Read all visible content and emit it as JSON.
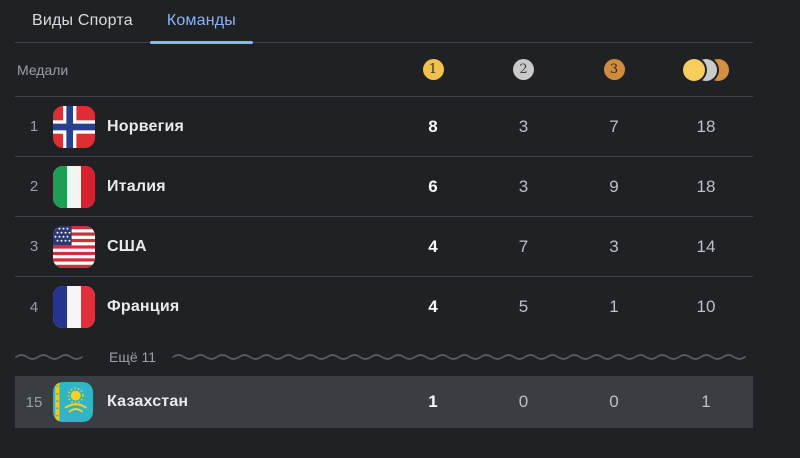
{
  "tabs": {
    "items": [
      {
        "label": "Виды Спорта",
        "active": false
      },
      {
        "label": "Команды",
        "active": true
      }
    ]
  },
  "medals": {
    "caption": "Медали",
    "header": {
      "gold_badge": "1",
      "silver_badge": "2",
      "bronze_badge": "3",
      "total_icon": "gold-silver-bronze-coins"
    },
    "rows": [
      {
        "rank": "1",
        "country": "Норвегия",
        "flag": "norway",
        "gold": "8",
        "silver": "3",
        "bronze": "7",
        "total": "18"
      },
      {
        "rank": "2",
        "country": "Италия",
        "flag": "italy",
        "gold": "6",
        "silver": "3",
        "bronze": "9",
        "total": "18"
      },
      {
        "rank": "3",
        "country": "США",
        "flag": "usa",
        "gold": "4",
        "silver": "7",
        "bronze": "3",
        "total": "14"
      },
      {
        "rank": "4",
        "country": "Франция",
        "flag": "france",
        "gold": "4",
        "silver": "5",
        "bronze": "1",
        "total": "10"
      }
    ],
    "more_label": "Ещё 11",
    "highlighted_row": {
      "rank": "15",
      "country": "Казахстан",
      "flag": "kazakhstan",
      "gold": "1",
      "silver": "0",
      "bronze": "0",
      "total": "1"
    }
  },
  "colors": {
    "background": "#202124",
    "accent_blue": "#8ab4f8",
    "gold": "#f1c04d",
    "silver": "#c9c9c9",
    "bronze": "#cd8c3e",
    "highlight_row_bg": "#3a3d41",
    "divider": "#3f4246",
    "text_primary": "#e8eaed",
    "text_secondary": "#9aa0a6"
  }
}
